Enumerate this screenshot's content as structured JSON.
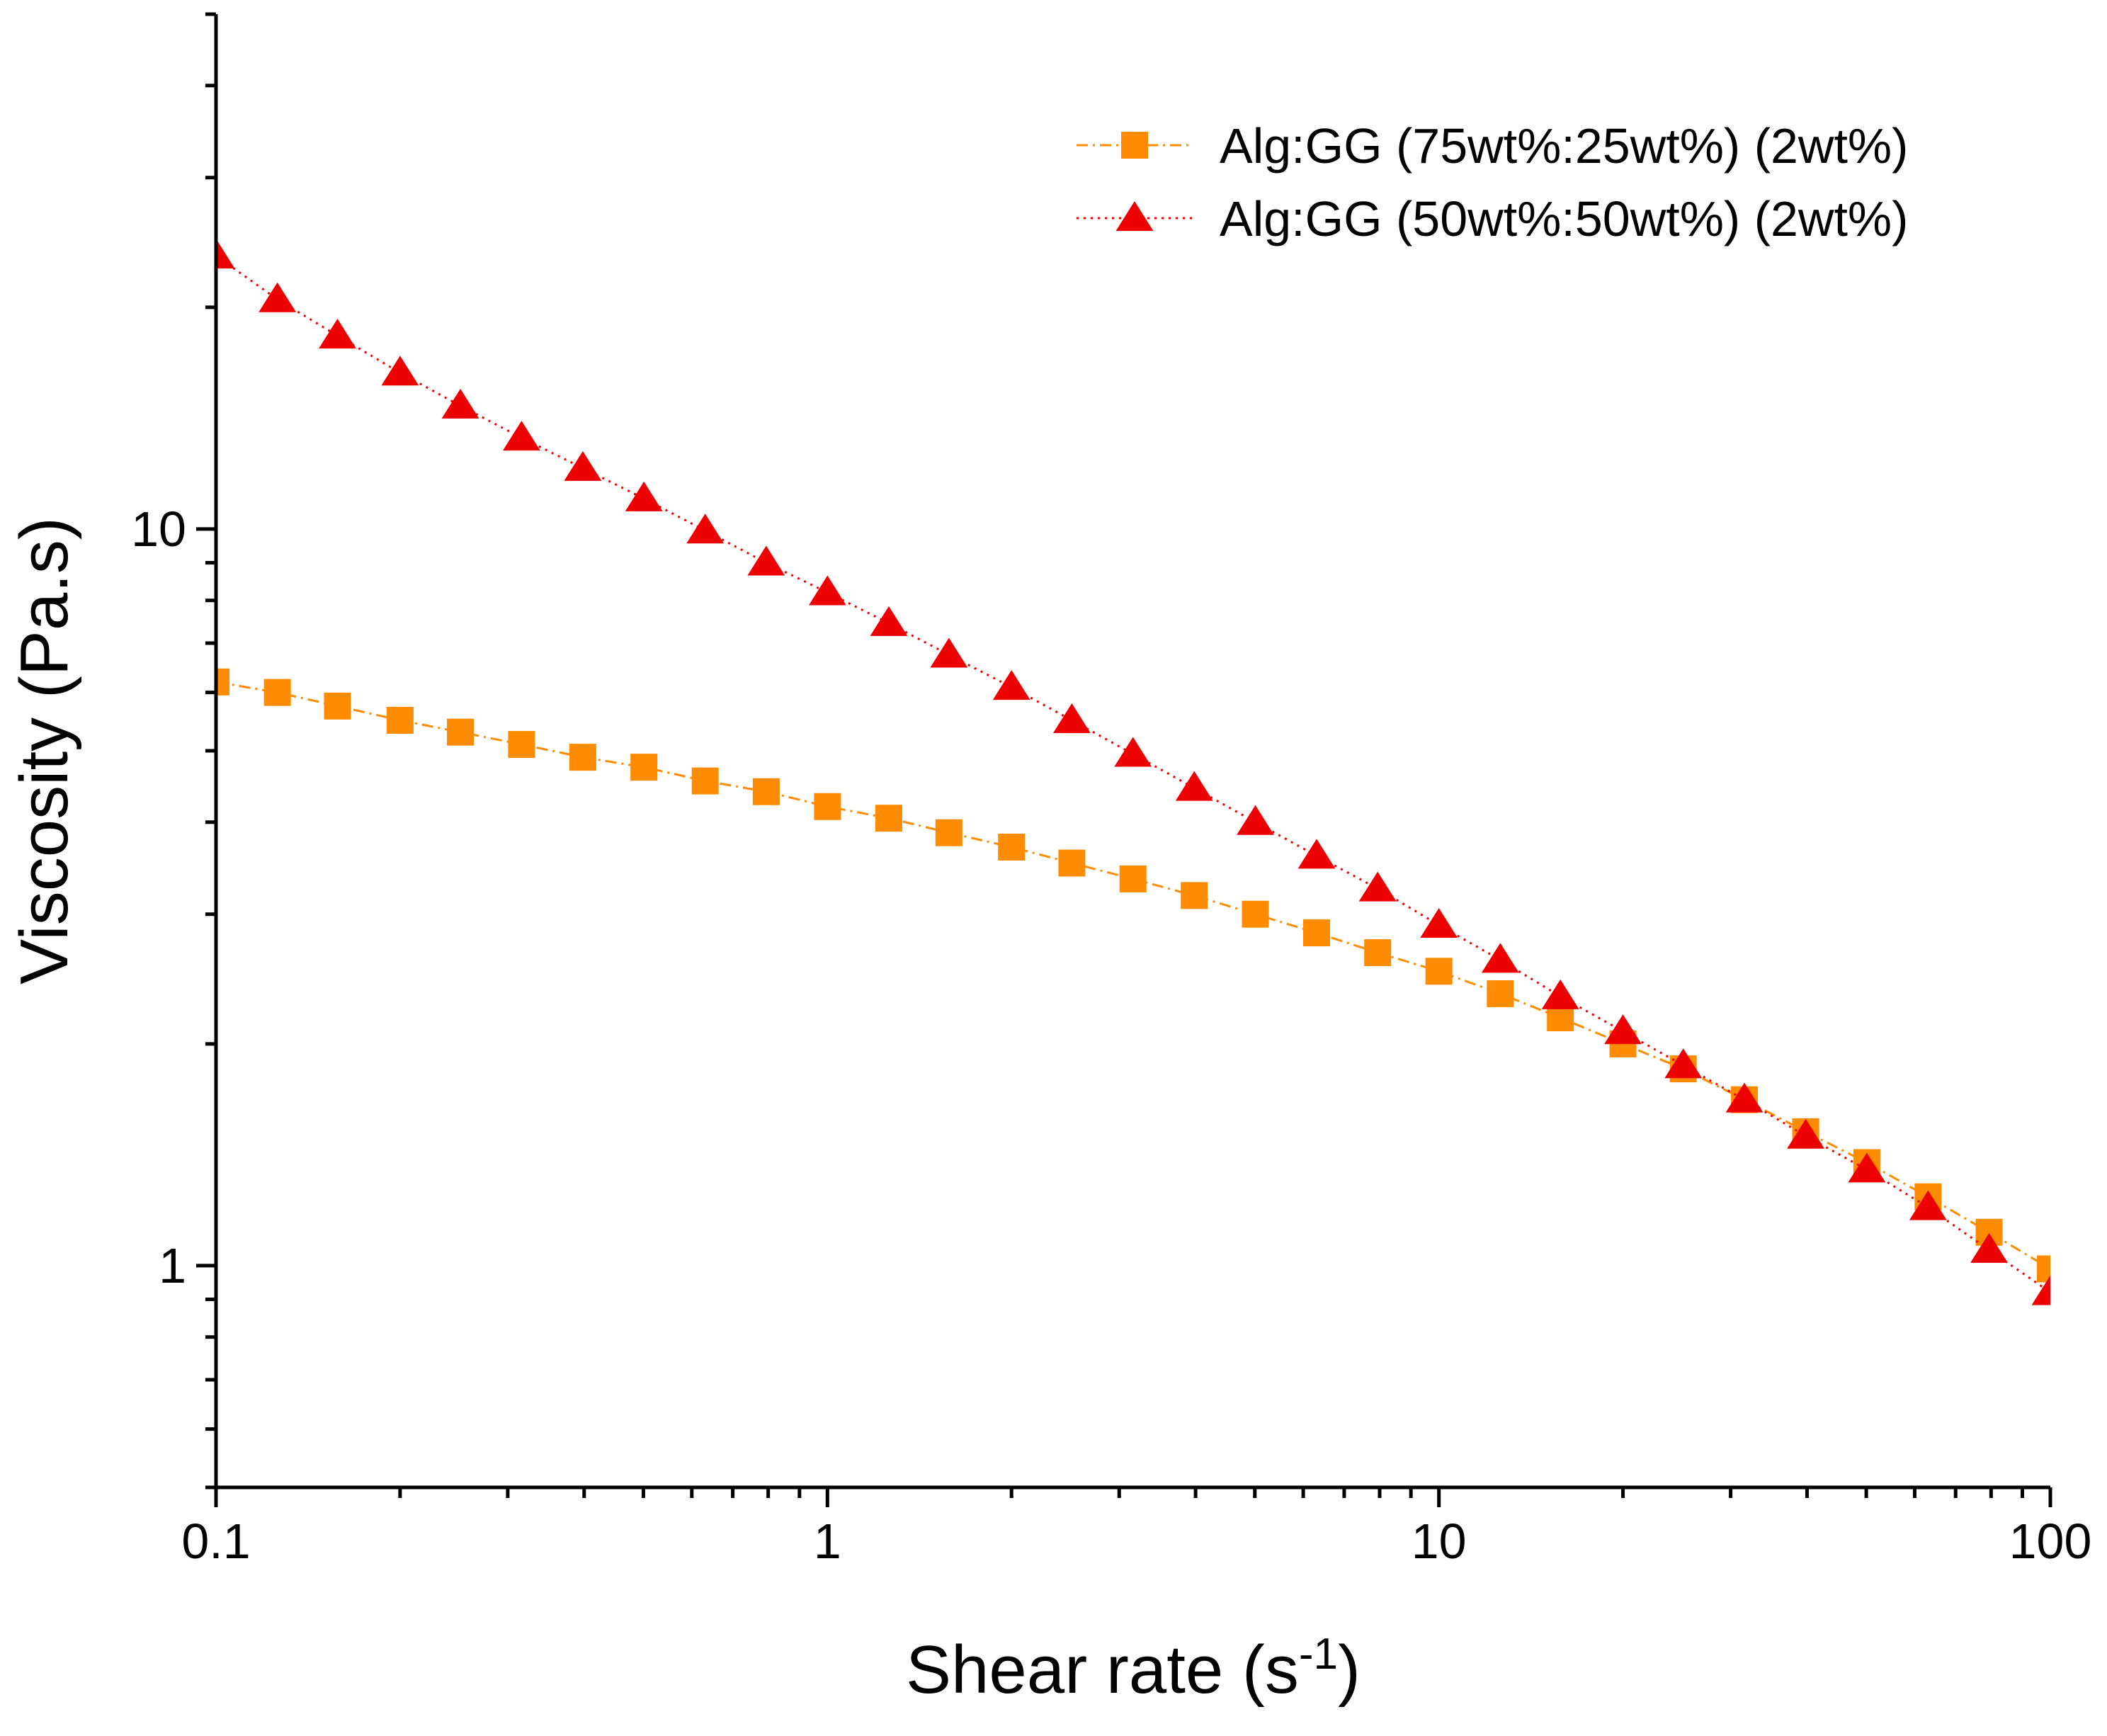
{
  "chart_data": {
    "type": "scatter",
    "title": "",
    "xlabel": "Shear rate (s",
    "xlabel_superscript": "-1",
    "xlabel_suffix": ")",
    "ylabel": "Viscosity (Pa.s)",
    "xscale": "log",
    "yscale": "log",
    "xlim": [
      0.1,
      100
    ],
    "ylim": [
      0.5,
      50
    ],
    "x_tick_labels": [
      "0.1",
      "1",
      "10",
      "100"
    ],
    "y_tick_labels": [
      "1",
      "10"
    ],
    "legend_position": "top-right",
    "x": [
      0.1,
      0.126,
      0.158,
      0.2,
      0.251,
      0.316,
      0.398,
      0.501,
      0.631,
      0.794,
      1,
      1.26,
      1.58,
      2,
      2.51,
      3.16,
      3.98,
      5.01,
      6.31,
      7.94,
      10,
      12.6,
      15.8,
      20,
      25.1,
      31.6,
      39.8,
      50.1,
      63.1,
      79.4,
      100
    ],
    "series": [
      {
        "name": "Alg:GG (75wt%:25wt%) (2wt%)",
        "color": "#ff8c00",
        "marker": "square",
        "line_style": "dash-dot",
        "values": [
          6.2,
          6.0,
          5.75,
          5.5,
          5.3,
          5.1,
          4.9,
          4.75,
          4.55,
          4.4,
          4.2,
          4.05,
          3.87,
          3.7,
          3.52,
          3.35,
          3.18,
          3.0,
          2.83,
          2.66,
          2.51,
          2.34,
          2.17,
          2.0,
          1.85,
          1.68,
          1.52,
          1.38,
          1.24,
          1.11,
          0.99
        ]
      },
      {
        "name": "Alg:GG (50wt%:50wt%) (2wt%)",
        "color": "#ee0000",
        "marker": "triangle",
        "line_style": "dotted",
        "values": [
          23.5,
          20.5,
          18.3,
          16.3,
          14.7,
          13.3,
          12.1,
          11.0,
          9.95,
          9.0,
          8.2,
          7.45,
          6.75,
          6.1,
          5.5,
          4.95,
          4.45,
          4.0,
          3.6,
          3.25,
          2.9,
          2.6,
          2.32,
          2.08,
          1.87,
          1.68,
          1.5,
          1.35,
          1.2,
          1.05,
          0.92
        ]
      }
    ]
  }
}
